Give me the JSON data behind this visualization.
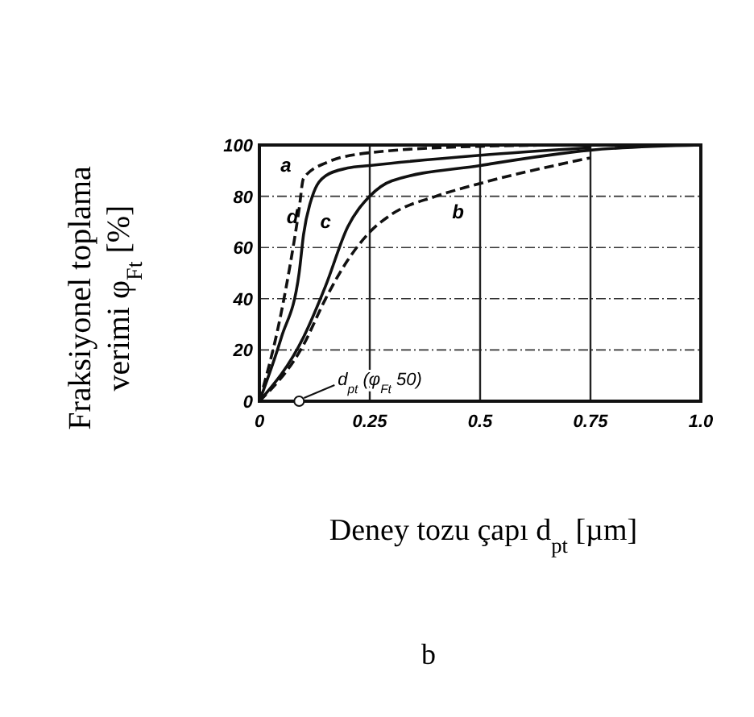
{
  "chart_data": {
    "type": "line",
    "xlabel": "Deney tozu çapı d$_{pt}$ [µm]",
    "ylabel": "Fraksiyonel toplama verimi φ$_{Ft}$ [%]",
    "xlim": [
      0,
      1
    ],
    "ylim": [
      0,
      100
    ],
    "xticks": [
      0,
      0.25,
      0.5,
      0.75,
      {
        "value": 1,
        "label": "1.0"
      }
    ],
    "yticks": [
      0,
      20,
      40,
      60,
      80,
      100
    ],
    "grid": true,
    "marker": "none",
    "series": [
      {
        "name": "a",
        "color": "#111111",
        "line_style": "dashed",
        "x": [
          0,
          0.05,
          0.09,
          0.1,
          0.15,
          0.25,
          0.5,
          0.7
        ],
        "values": [
          0,
          35,
          75,
          87,
          93,
          97,
          99.5,
          100
        ]
      },
      {
        "name": "b",
        "color": "#111111",
        "line_style": "dashed",
        "x": [
          0,
          0.1,
          0.15,
          0.2,
          0.25,
          0.3,
          0.4,
          0.5,
          0.75
        ],
        "values": [
          0,
          22,
          40,
          55,
          66,
          73,
          80,
          85,
          95
        ]
      },
      {
        "name": "c",
        "color": "#111111",
        "line_style": "solid",
        "x": [
          0,
          0.1,
          0.15,
          0.2,
          0.25,
          0.3,
          0.5,
          0.75,
          1.0
        ],
        "values": [
          0,
          25,
          45,
          68,
          80,
          86,
          92,
          98,
          100
        ]
      },
      {
        "name": "d",
        "color": "#111111",
        "line_style": "solid",
        "x": [
          0,
          0.05,
          0.09,
          0.1,
          0.12,
          0.15,
          0.2,
          0.25,
          0.5,
          0.75
        ],
        "values": [
          0,
          25,
          50,
          65,
          80,
          88,
          91,
          92,
          96,
          99
        ]
      }
    ],
    "annotations": [
      {
        "text": "d$_{pt}$ (φ$_{Ft}$ 50)",
        "x": 0.09,
        "y": 0
      },
      "b"
    ]
  }
}
